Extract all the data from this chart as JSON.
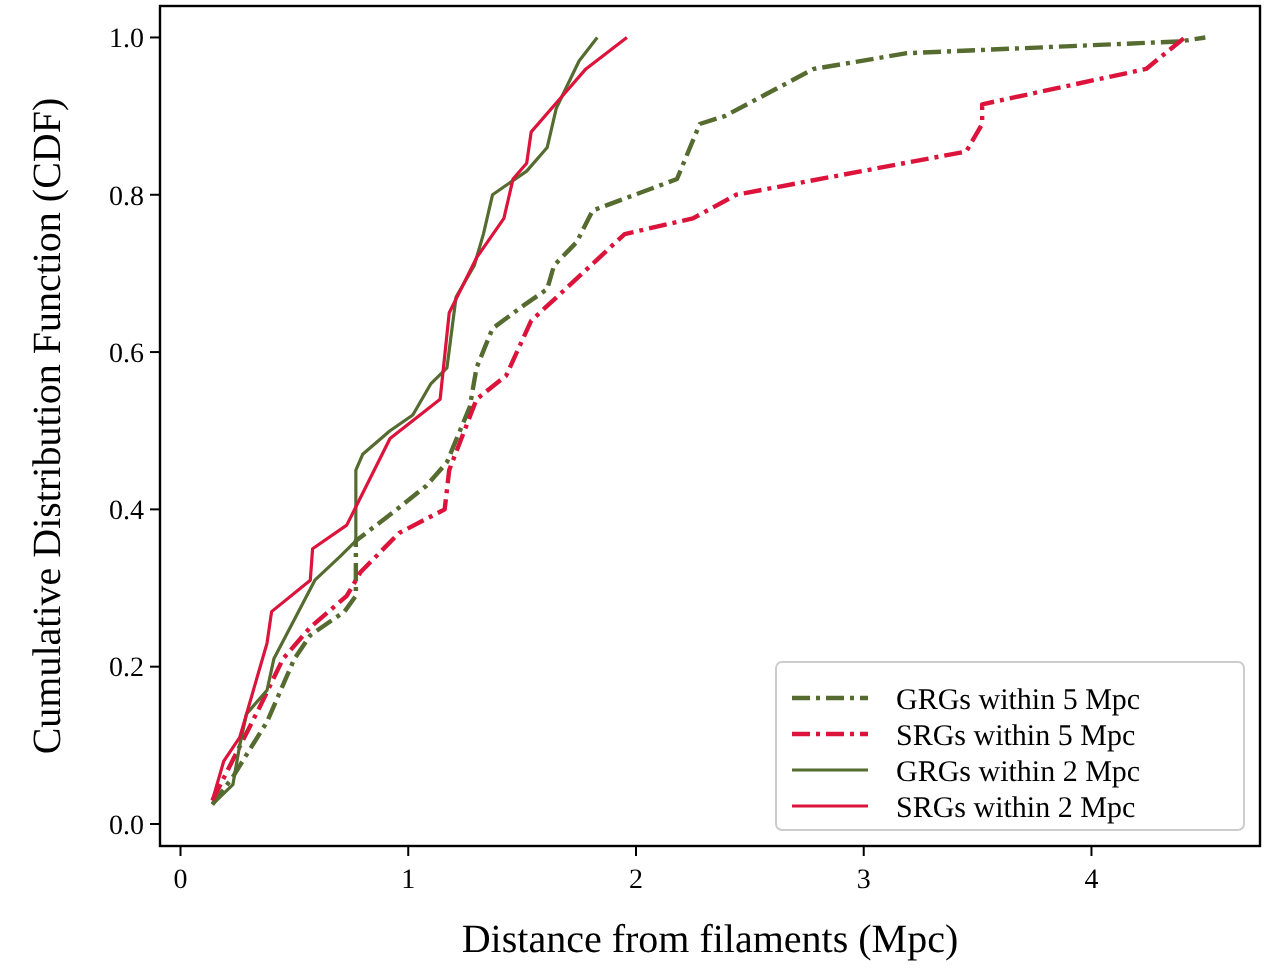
{
  "chart_data": {
    "type": "line",
    "xlabel": "Distance from filaments (Mpc)",
    "ylabel": "Cumulative Distribution Function (CDF)",
    "xlim": [
      -0.09,
      4.74
    ],
    "ylim": [
      -0.028,
      1.04
    ],
    "xticks": [
      0,
      1,
      2,
      3,
      4
    ],
    "yticks": [
      {
        "value": 0,
        "label": "0.0"
      },
      {
        "value": 0.2,
        "label": "0.2"
      },
      {
        "value": 0.4,
        "label": "0.4"
      },
      {
        "value": 0.6,
        "label": "0.6"
      },
      {
        "value": 0.8,
        "label": "0.8"
      },
      {
        "value": 1,
        "label": "1.0"
      }
    ],
    "grid": false,
    "legend": "bottom right",
    "marker": "none",
    "series": [
      {
        "name": "GRGs within 5 Mpc",
        "color": "#556b2f",
        "line_style": "dashed",
        "x": [
          0.14,
          0.23,
          0.38,
          0.5,
          0.57,
          0.72,
          0.77,
          0.77,
          0.95,
          1.08,
          1.17,
          1.27,
          1.3,
          1.37,
          1.51,
          1.61,
          1.64,
          1.74,
          1.81,
          2.18,
          2.28,
          2.39,
          2.78,
          3.19,
          4.39,
          4.5
        ],
        "values": [
          0.025,
          0.06,
          0.13,
          0.21,
          0.24,
          0.27,
          0.29,
          0.36,
          0.4,
          0.43,
          0.46,
          0.53,
          0.58,
          0.63,
          0.66,
          0.68,
          0.71,
          0.74,
          0.78,
          0.82,
          0.89,
          0.9,
          0.96,
          0.98,
          0.995,
          1.0
        ]
      },
      {
        "name": "SRGs within 5 Mpc",
        "color": "#dc143c",
        "line_style": "dashed",
        "x": [
          0.14,
          0.35,
          0.45,
          0.57,
          0.73,
          0.79,
          0.96,
          1.16,
          1.18,
          1.3,
          1.43,
          1.54,
          1.69,
          1.95,
          2.25,
          2.44,
          3.45,
          3.52,
          3.52,
          4.24,
          4.41
        ],
        "values": [
          0.03,
          0.15,
          0.21,
          0.25,
          0.29,
          0.32,
          0.37,
          0.4,
          0.45,
          0.54,
          0.57,
          0.64,
          0.68,
          0.75,
          0.77,
          0.8,
          0.855,
          0.89,
          0.915,
          0.96,
          1.0
        ]
      },
      {
        "name": "GRGs within 2 Mpc",
        "color": "#556b2f",
        "line_style": "solid",
        "x": [
          0.14,
          0.23,
          0.26,
          0.29,
          0.38,
          0.41,
          0.5,
          0.59,
          0.7,
          0.77,
          0.77,
          0.8,
          0.92,
          1.02,
          1.1,
          1.17,
          1.21,
          1.29,
          1.33,
          1.37,
          1.52,
          1.61,
          1.65,
          1.75,
          1.83
        ],
        "values": [
          0.025,
          0.05,
          0.1,
          0.14,
          0.17,
          0.21,
          0.26,
          0.31,
          0.34,
          0.36,
          0.45,
          0.47,
          0.5,
          0.52,
          0.56,
          0.58,
          0.67,
          0.71,
          0.75,
          0.8,
          0.83,
          0.86,
          0.91,
          0.97,
          1.0
        ]
      },
      {
        "name": "SRGs within 2 Mpc",
        "color": "#dc143c",
        "line_style": "solid",
        "x": [
          0.14,
          0.19,
          0.26,
          0.29,
          0.38,
          0.4,
          0.57,
          0.58,
          0.73,
          0.92,
          1.14,
          1.18,
          1.3,
          1.42,
          1.46,
          1.52,
          1.54,
          1.69,
          1.78,
          1.96
        ],
        "values": [
          0.03,
          0.08,
          0.11,
          0.14,
          0.23,
          0.27,
          0.31,
          0.35,
          0.38,
          0.49,
          0.54,
          0.65,
          0.72,
          0.77,
          0.82,
          0.84,
          0.88,
          0.93,
          0.96,
          1.0
        ]
      }
    ]
  }
}
